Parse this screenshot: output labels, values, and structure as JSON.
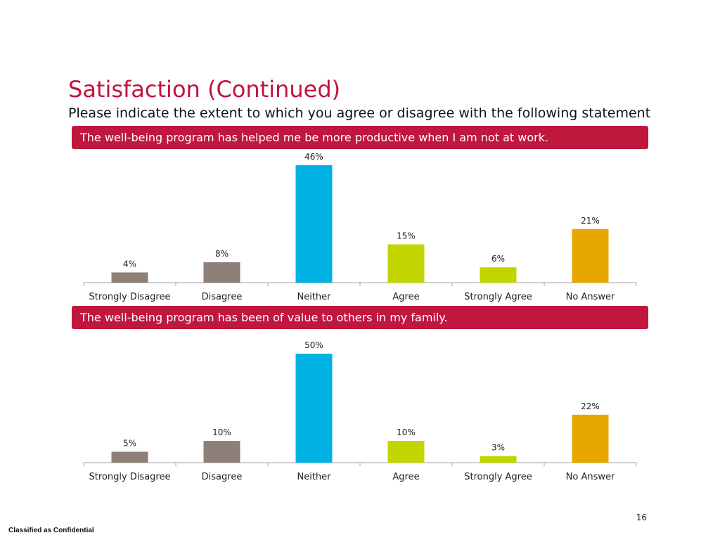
{
  "title": "Satisfaction (Continued)",
  "subtitle": "Please indicate the extent to which you agree or disagree with the following statement",
  "page_number": "16",
  "footer": "Classified as Confidential",
  "chart_data": [
    {
      "type": "bar",
      "title": "The well-being program has helped me be more productive when I am not at work.",
      "categories": [
        "Strongly Disagree",
        "Disagree",
        "Neither",
        "Agree",
        "Strongly Agree",
        "No Answer"
      ],
      "values": [
        4,
        8,
        46,
        15,
        6,
        21
      ],
      "data_labels": [
        "4%",
        "8%",
        "46%",
        "15%",
        "6%",
        "21%"
      ],
      "colors": [
        "#8c8079",
        "#8c8079",
        "#00b2e3",
        "#c2d500",
        "#c2d500",
        "#e8a700"
      ],
      "ylim": [
        0,
        46
      ],
      "grid": false
    },
    {
      "type": "bar",
      "title": "The well-being program has been of value to others in my family.",
      "categories": [
        "Strongly Disagree",
        "Disagree",
        "Neither",
        "Agree",
        "Strongly Agree",
        "No Answer"
      ],
      "values": [
        5,
        10,
        50,
        10,
        3,
        22
      ],
      "data_labels": [
        "5%",
        "10%",
        "50%",
        "10%",
        "3%",
        "22%"
      ],
      "colors": [
        "#8c8079",
        "#8c8079",
        "#00b2e3",
        "#c2d500",
        "#c2d500",
        "#e8a700"
      ],
      "ylim": [
        0,
        50
      ],
      "grid": false
    }
  ]
}
